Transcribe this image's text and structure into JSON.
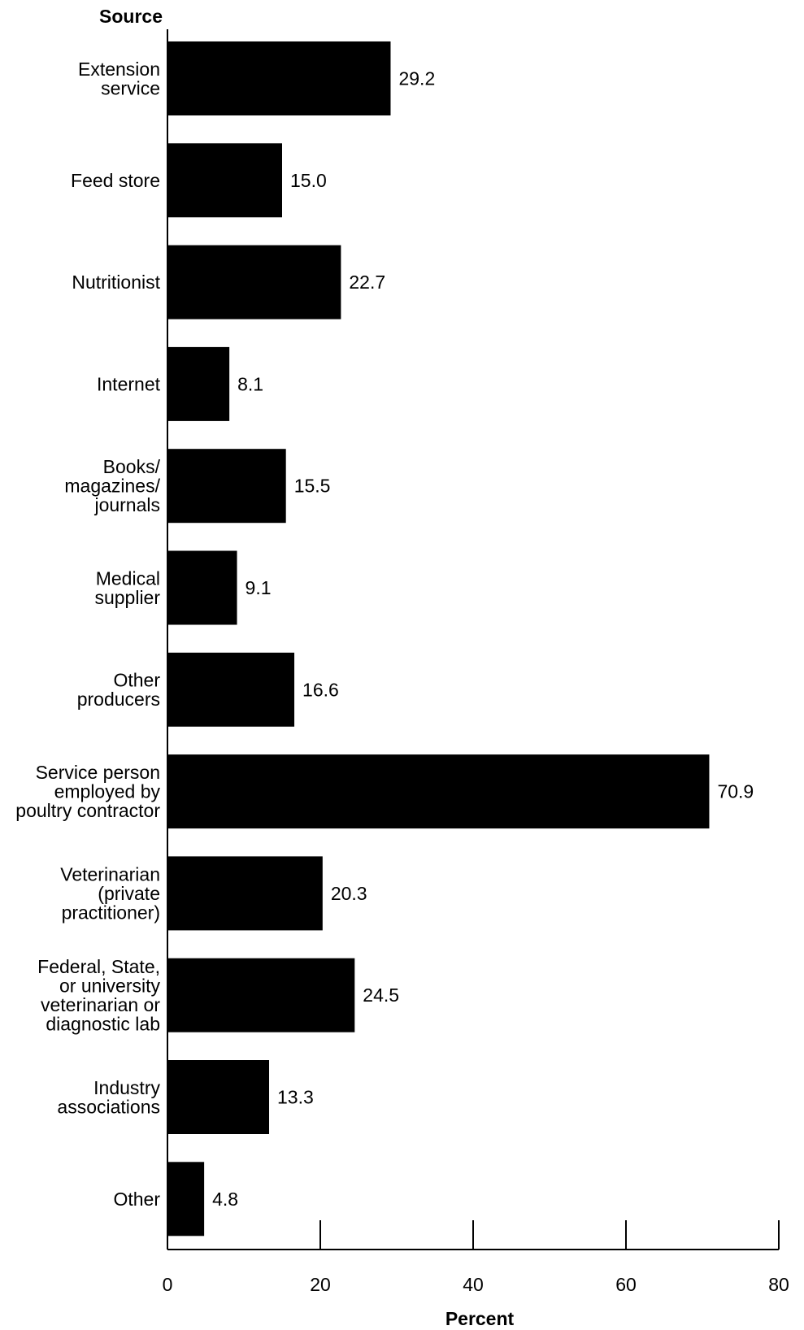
{
  "chart_data": {
    "type": "bar",
    "orientation": "horizontal",
    "y_axis_title": "Source",
    "xlabel": "Percent",
    "categories": [
      [
        "Extension",
        "service"
      ],
      [
        "Feed store"
      ],
      [
        "Nutritionist"
      ],
      [
        "Internet"
      ],
      [
        "Books/",
        "magazines/",
        "journals"
      ],
      [
        "Medical",
        "supplier"
      ],
      [
        "Other",
        "producers"
      ],
      [
        "Service person",
        "employed by",
        "poultry contractor"
      ],
      [
        "Veterinarian",
        "(private",
        "practitioner)"
      ],
      [
        "Federal, State,",
        "or university",
        "veterinarian or",
        "diagnostic lab"
      ],
      [
        "Industry",
        "associations"
      ],
      [
        "Other"
      ]
    ],
    "values": [
      29.2,
      15.0,
      22.7,
      8.1,
      15.5,
      9.1,
      16.6,
      70.9,
      20.3,
      24.5,
      13.3,
      4.8
    ],
    "value_labels": [
      "29.2",
      "15.0",
      "22.7",
      "8.1",
      "15.5",
      "9.1",
      "16.6",
      "70.9",
      "20.3",
      "24.5",
      "13.3",
      "4.8"
    ],
    "xlim": [
      0,
      80
    ],
    "x_ticks": [
      0,
      20,
      40,
      60,
      80
    ],
    "x_tick_labels": [
      "0",
      "20",
      "40",
      "60",
      "80"
    ],
    "bar_color": "#000000",
    "grid": false,
    "legend": "none"
  }
}
